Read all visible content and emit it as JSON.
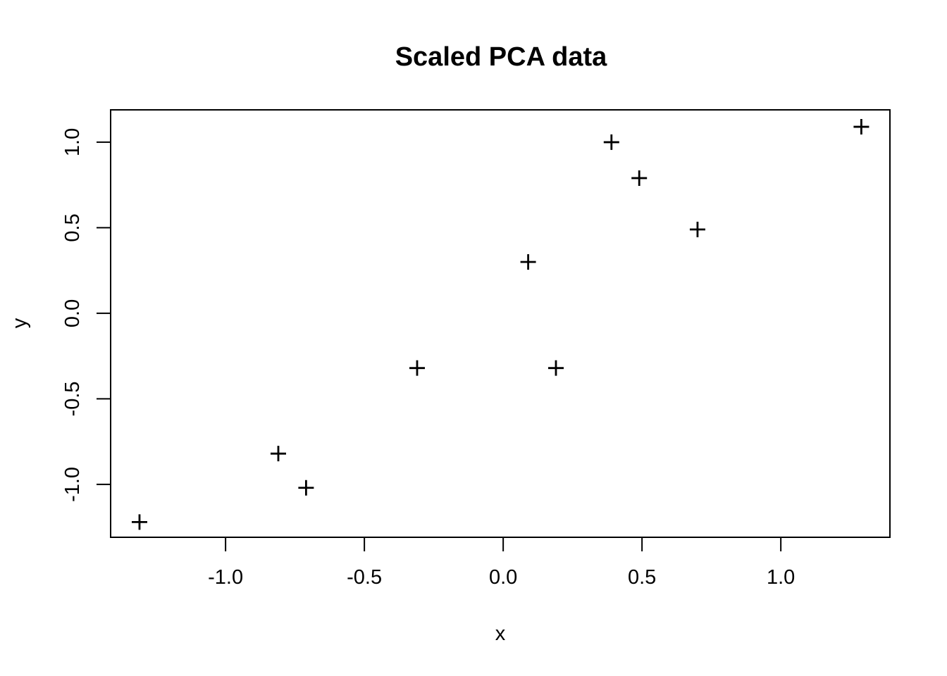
{
  "chart_data": {
    "type": "scatter",
    "title": "Scaled PCA data",
    "xlabel": "x",
    "ylabel": "y",
    "marker": "plus",
    "marker_color": "#000000",
    "frame_color": "#000000",
    "background_color": "#ffffff",
    "grid": false,
    "legend": null,
    "xlim": [
      -1.414,
      1.393
    ],
    "ylim": [
      -1.309,
      1.189
    ],
    "x_ticks": [
      -1.0,
      -0.5,
      0.0,
      0.5,
      1.0
    ],
    "x_tick_labels": [
      "-1.0",
      "-0.5",
      "0.0",
      "0.5",
      "1.0"
    ],
    "y_ticks": [
      -1.0,
      -0.5,
      0.0,
      0.5,
      1.0
    ],
    "y_tick_labels": [
      "-1.0",
      "-0.5",
      "0.0",
      "0.5",
      "1.0"
    ],
    "points": [
      {
        "x": -1.31,
        "y": -1.22
      },
      {
        "x": -0.81,
        "y": -0.82
      },
      {
        "x": -0.71,
        "y": -1.02
      },
      {
        "x": -0.31,
        "y": -0.32
      },
      {
        "x": 0.09,
        "y": 0.3
      },
      {
        "x": 0.19,
        "y": -0.32
      },
      {
        "x": 0.39,
        "y": 1.0
      },
      {
        "x": 0.49,
        "y": 0.79
      },
      {
        "x": 0.7,
        "y": 0.49
      },
      {
        "x": 1.29,
        "y": 1.09
      }
    ]
  }
}
